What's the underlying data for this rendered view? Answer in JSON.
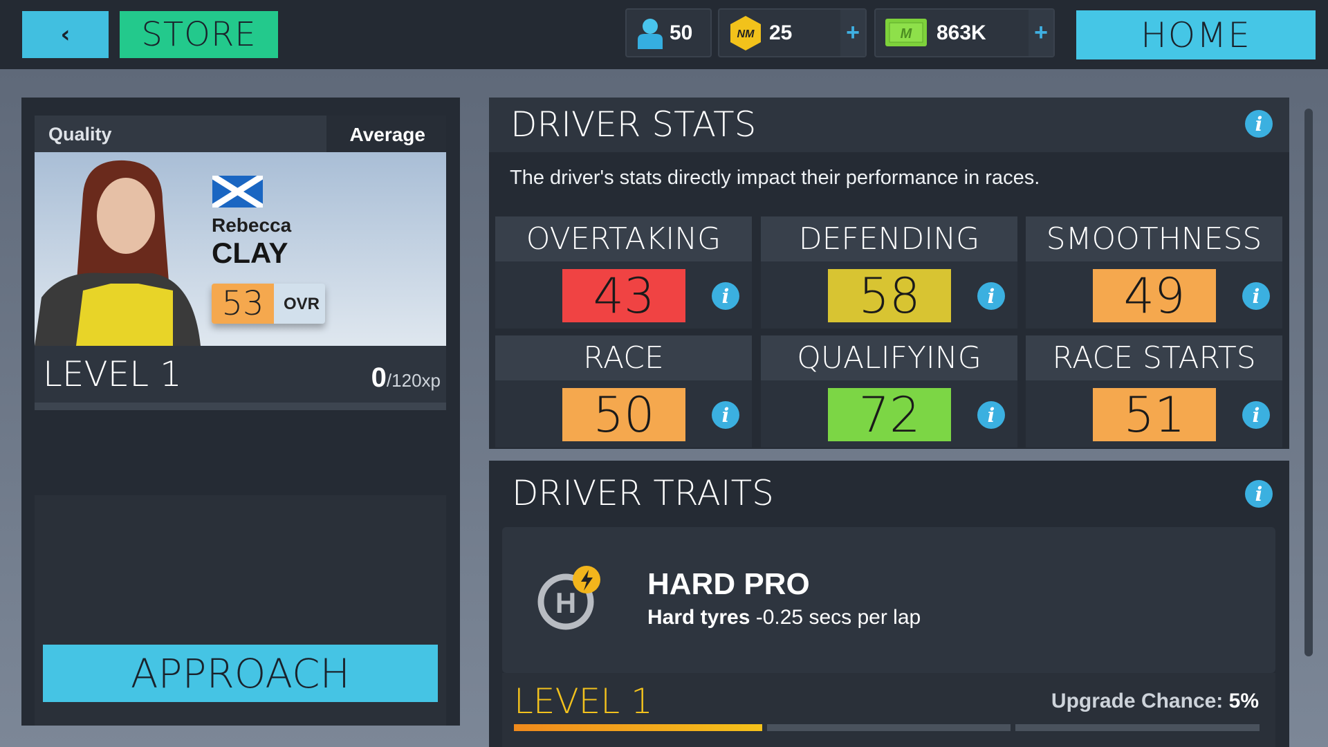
{
  "topbar": {
    "back_icon": "chevron-left-icon",
    "store_label": "STORE",
    "home_label": "HOME",
    "counters": [
      {
        "icon": "person-icon",
        "value": "50"
      },
      {
        "icon": "nm-token-icon",
        "value": "25",
        "plus": "+"
      },
      {
        "icon": "cash-icon",
        "value": "863K",
        "plus": "+"
      }
    ]
  },
  "driver": {
    "quality_label": "Quality",
    "quality_value": "Average",
    "first_name": "Rebecca",
    "last_name": "CLAY",
    "flag": "scotland-flag",
    "ovr_value": "53",
    "ovr_label": "OVR",
    "level": "LEVEL 1",
    "xp_current": "0",
    "xp_total": "/120",
    "xp_unit": "xp",
    "xp_progress": 0,
    "approach_label": "APPROACH"
  },
  "stats": {
    "title": "DRIVER STATS",
    "description": "The driver's stats directly impact their performance in races.",
    "items": [
      {
        "label": "OVERTAKING",
        "value": "43",
        "color": "#f04343"
      },
      {
        "label": "DEFENDING",
        "value": "58",
        "color": "#d8c432"
      },
      {
        "label": "SMOOTHNESS",
        "value": "49",
        "color": "#f5a84e"
      },
      {
        "label": "RACE",
        "value": "50",
        "color": "#f5a84e"
      },
      {
        "label": "QUALIFYING",
        "value": "72",
        "color": "#7cd645"
      },
      {
        "label": "RACE STARTS",
        "value": "51",
        "color": "#f5a84e"
      }
    ]
  },
  "traits": {
    "title": "DRIVER TRAITS",
    "name": "HARD PRO",
    "desc_bold": "Hard tyres",
    "desc_rest": " -0.25 secs per lap",
    "level": "LEVEL 1",
    "upgrade_label": "Upgrade Chance: ",
    "upgrade_value": "5%",
    "level_progress_segments": [
      1,
      0,
      0
    ]
  }
}
